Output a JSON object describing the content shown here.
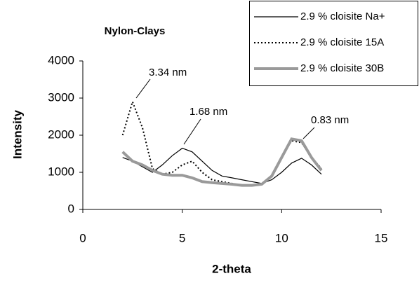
{
  "chart_data": {
    "type": "line",
    "title": "Nylon-Clays",
    "x_label": "2-theta",
    "y_label": "Intensity",
    "x": [
      2,
      2.5,
      3,
      3.5,
      4,
      4.5,
      5,
      5.5,
      6,
      6.5,
      7,
      7.5,
      8,
      8.5,
      9,
      9.5,
      10,
      10.5,
      11,
      11.5,
      12
    ],
    "series": [
      {
        "name": "2.9 % cloisite Na+",
        "color": "#000000",
        "style": "solid",
        "values": [
          1400,
          1300,
          1150,
          1000,
          1200,
          1450,
          1650,
          1550,
          1300,
          1050,
          900,
          850,
          800,
          750,
          700,
          800,
          1000,
          1250,
          1380,
          1200,
          950
        ]
      },
      {
        "name": "2.9 % cloisite 15A",
        "color": "#000000",
        "style": "dotted",
        "values": [
          2000,
          2900,
          2200,
          1100,
          950,
          1000,
          1200,
          1300,
          1000,
          800,
          750,
          700,
          650,
          650,
          700,
          900,
          1400,
          1850,
          1800,
          1400,
          1100
        ]
      },
      {
        "name": "2.9 % cloisite 30B",
        "color": "#9a9a9a",
        "style": "thick",
        "values": [
          1550,
          1300,
          1200,
          1050,
          950,
          920,
          920,
          850,
          750,
          720,
          700,
          680,
          650,
          650,
          680,
          900,
          1400,
          1900,
          1850,
          1400,
          1050
        ]
      }
    ],
    "annotations": [
      "3.34 nm",
      "1.68 nm",
      "0.83 nm"
    ],
    "xlim": [
      0,
      15
    ],
    "xticks": [
      0,
      5,
      10,
      15
    ],
    "ylim": [
      0,
      4000
    ],
    "yticks": [
      0,
      1000,
      2000,
      3000,
      4000
    ],
    "grid": false,
    "legend": "top-right"
  }
}
